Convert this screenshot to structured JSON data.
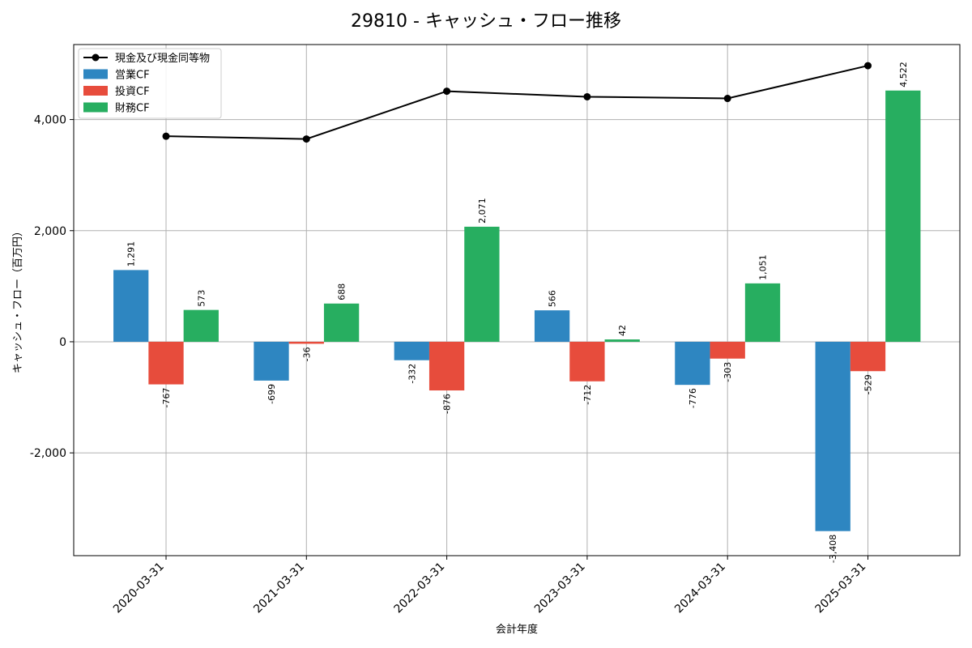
{
  "chart_data": {
    "type": "bar",
    "title": "29810 - キャッシュ・フロー推移",
    "xlabel": "会計年度",
    "ylabel": "キャッシュ・フロー（百万円）",
    "ylim": [
      -3850,
      5350
    ],
    "yticks": [
      -2000,
      0,
      2000,
      4000
    ],
    "ytick_labels": [
      "-2,000",
      "0",
      "2,000",
      "4,000"
    ],
    "categories": [
      "2020-03-31",
      "2021-03-31",
      "2022-03-31",
      "2023-03-31",
      "2024-03-31",
      "2025-03-31"
    ],
    "series": [
      {
        "name": "営業CF",
        "kind": "bar",
        "color": "#2e86c1",
        "values": [
          1291,
          -699,
          -332,
          566,
          -776,
          -3408
        ],
        "labels": [
          "1,291",
          "-699",
          "-332",
          "566",
          "-776",
          "-3,408"
        ]
      },
      {
        "name": "投資CF",
        "kind": "bar",
        "color": "#e74c3c",
        "values": [
          -767,
          -36,
          -876,
          -712,
          -303,
          -529
        ],
        "labels": [
          "-767",
          "-36",
          "-876",
          "-712",
          "-303",
          "-529"
        ]
      },
      {
        "name": "財務CF",
        "kind": "bar",
        "color": "#27ae60",
        "values": [
          573,
          688,
          2071,
          42,
          1051,
          4522
        ],
        "labels": [
          "573",
          "688",
          "2,071",
          "42",
          "1,051",
          "4,522"
        ]
      },
      {
        "name": "現金及び現金同等物",
        "kind": "line",
        "color": "#000000",
        "values": [
          3700,
          3650,
          4510,
          4410,
          4380,
          4970
        ]
      }
    ],
    "legend_order": [
      "現金及び現金同等物",
      "営業CF",
      "投資CF",
      "財務CF"
    ],
    "legend_position": "top-left",
    "grid": true
  }
}
